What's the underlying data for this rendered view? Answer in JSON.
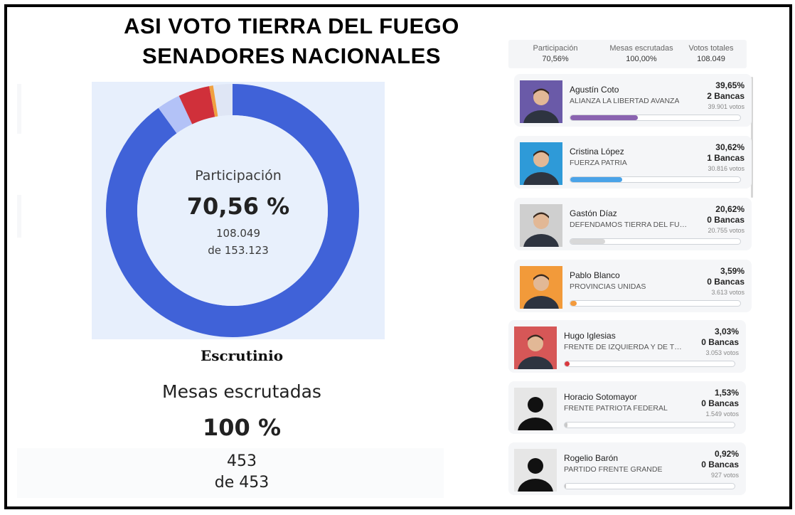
{
  "header": {
    "line1": "ASI VOTO TIERRA DEL FUEGO",
    "line2": "SENADORES NACIONALES"
  },
  "donut": {
    "label": "Participación",
    "percent": "70,56 %",
    "votes": "108.049",
    "of_total": "de 153.123",
    "fraction": 0.7056,
    "segments": [
      {
        "color": "#4062d8",
        "fraction": 0.9
      },
      {
        "color": "#b3c2f7",
        "fraction": 0.03
      },
      {
        "color": "#d0303a",
        "fraction": 0.04
      },
      {
        "color": "#f0a040",
        "fraction": 0.005
      }
    ]
  },
  "scrutiny": {
    "title": "Escrutinio",
    "mesas_label": "Mesas escrutadas",
    "mesas_percent": "100 %",
    "mesas_count": "453",
    "mesas_total": "de 453"
  },
  "stats": [
    {
      "label": "Participación",
      "value": "70,56%"
    },
    {
      "label": "Mesas escrutadas",
      "value": "100,00%"
    },
    {
      "label": "Votos totales",
      "value": "108.049"
    }
  ],
  "candidates": [
    {
      "name": "Agustín Coto",
      "party": "ALIANZA LA LIBERTAD AVANZA",
      "percent": "39,65%",
      "seats": "2 Bancas",
      "votes": "39.901 votos",
      "share": 39.65,
      "color": "#8a63b0",
      "photo_bg": "#6a5aa8"
    },
    {
      "name": "Cristina López",
      "party": "FUERZA PATRIA",
      "percent": "30,62%",
      "seats": "1 Bancas",
      "votes": "30.816 votos",
      "share": 30.62,
      "color": "#4aa3e8",
      "photo_bg": "#2e9ad8"
    },
    {
      "name": "Gastón Díaz",
      "party": "DEFENDAMOS TIERRA DEL FUEGO",
      "percent": "20,62%",
      "seats": "0 Bancas",
      "votes": "20.755 votos",
      "share": 20.62,
      "color": "#d8d8d8",
      "photo_bg": "#cfcfcf"
    },
    {
      "name": "Pablo Blanco",
      "party": "PROVINCIAS UNIDAS",
      "percent": "3,59%",
      "seats": "0 Bancas",
      "votes": "3.613 votos",
      "share": 3.59,
      "color": "#f39a3c",
      "photo_bg": "#f29a3a"
    },
    {
      "name": "Hugo Iglesias",
      "party": "FRENTE DE IZQUIERDA Y DE TRA...",
      "percent": "3,03%",
      "seats": "0 Bancas",
      "votes": "3.053 votos",
      "share": 3.03,
      "color": "#d8383e",
      "photo_bg": "#d65757"
    },
    {
      "name": "Horacio Sotomayor",
      "party": "FRENTE PATRIOTA FEDERAL",
      "percent": "1,53%",
      "seats": "0 Bancas",
      "votes": "1.549 votos",
      "share": 1.53,
      "color": "#c8c8c8",
      "photo_bg": "#e6e6e6"
    },
    {
      "name": "Rogelio Barón",
      "party": "PARTIDO FRENTE GRANDE",
      "percent": "0,92%",
      "seats": "0 Bancas",
      "votes": "927 votos",
      "share": 0.92,
      "color": "#c8c8c8",
      "photo_bg": "#e6e6e6"
    }
  ]
}
